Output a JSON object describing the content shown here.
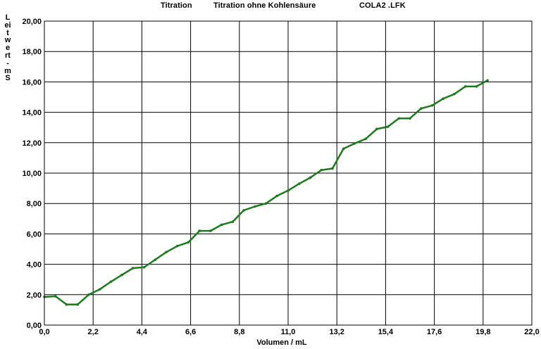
{
  "header": {
    "mode": "Titration",
    "title": "Titration ohne Kohlensäure",
    "file": "COLA2   .LFK"
  },
  "chart_data": {
    "type": "line",
    "title": "Titration ohne Kohlensäure",
    "xlabel": "Volumen / mL",
    "ylabel": "Leitwert - mS",
    "xlim": [
      0.0,
      22.0
    ],
    "ylim": [
      0.0,
      20.0
    ],
    "grid": true,
    "line_color": "#1f7a1f",
    "x_ticks": [
      "0,0",
      "2,2",
      "4,4",
      "6,6",
      "8,8",
      "11,0",
      "13,2",
      "15,4",
      "17,6",
      "19,8",
      "22,0"
    ],
    "y_ticks": [
      "0,00",
      "2,00",
      "4,00",
      "6,00",
      "8,00",
      "10,00",
      "12,00",
      "14,00",
      "16,00",
      "18,00",
      "20,00"
    ],
    "x_tick_values": [
      0.0,
      2.2,
      4.4,
      6.6,
      8.8,
      11.0,
      13.2,
      15.4,
      17.6,
      19.8,
      22.0
    ],
    "y_tick_values": [
      0,
      2,
      4,
      6,
      8,
      10,
      12,
      14,
      16,
      18,
      20
    ],
    "series": [
      {
        "x": [
          0.0,
          0.5,
          1.0,
          1.5,
          2.0,
          2.5,
          3.0,
          3.5,
          4.0,
          4.5,
          5.0,
          5.5,
          6.0,
          6.5,
          7.0,
          7.5,
          8.0,
          8.5,
          9.0,
          9.5,
          10.0,
          10.5,
          11.0,
          11.5,
          12.0,
          12.5,
          13.0,
          13.5,
          14.0,
          14.5,
          15.0,
          15.5,
          16.0,
          16.5,
          17.0,
          17.5,
          18.0,
          18.5,
          19.0,
          19.5,
          20.0
        ],
        "y": [
          1.85,
          1.9,
          1.35,
          1.35,
          2.0,
          2.35,
          2.85,
          3.3,
          3.75,
          3.8,
          4.3,
          4.8,
          5.2,
          5.45,
          6.2,
          6.2,
          6.6,
          6.8,
          7.55,
          7.8,
          8.0,
          8.5,
          8.85,
          9.3,
          9.7,
          10.2,
          10.3,
          11.6,
          11.95,
          12.25,
          12.9,
          13.05,
          13.6,
          13.6,
          14.25,
          14.45,
          14.9,
          15.2,
          15.7,
          15.7,
          16.1
        ]
      }
    ]
  }
}
